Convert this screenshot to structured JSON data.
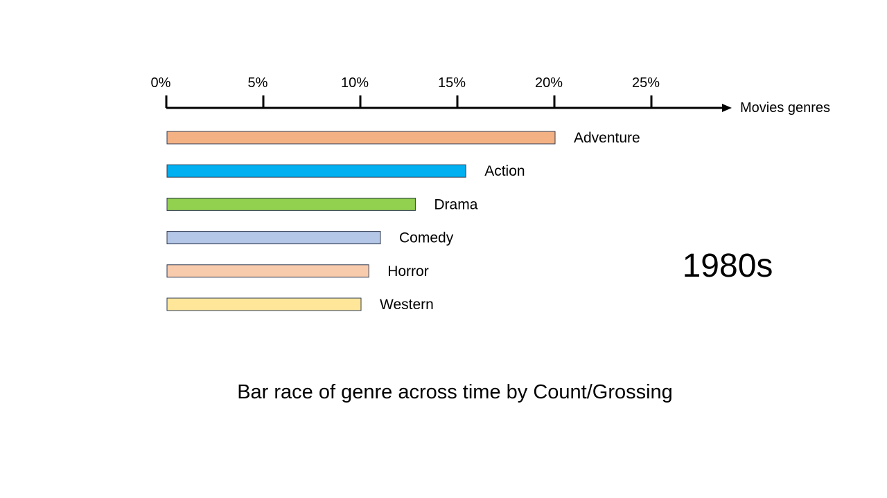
{
  "chart_data": {
    "type": "bar",
    "orientation": "horizontal",
    "title": "Bar race of genre across time by Count/Grossing",
    "xlabel": "Movies genres",
    "ylabel": "",
    "xlim": [
      0,
      29
    ],
    "x_ticks": [
      0,
      5,
      10,
      15,
      20,
      25
    ],
    "x_tick_labels": [
      "0%",
      "5%",
      "10%",
      "15%",
      "20%",
      "25%"
    ],
    "period": "1980s",
    "grid": false,
    "legend": "none",
    "categories": [
      "Adventure",
      "Action",
      "Drama",
      "Comedy",
      "Horror",
      "Western"
    ],
    "values": [
      20.0,
      15.4,
      12.8,
      11.0,
      10.4,
      10.0
    ],
    "colors": [
      "#f4b183",
      "#00b0f0",
      "#92d050",
      "#b4c7e7",
      "#f8cbad",
      "#ffe699"
    ],
    "bar_outline_color": "#2f3b52"
  }
}
